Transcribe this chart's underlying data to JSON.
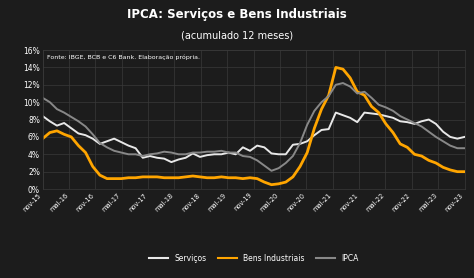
{
  "title": "IPCA: Serviços e Bens Industriais",
  "subtitle": "(acumulado 12 meses)",
  "source_text": "Fonte: IBGE, BCB e C6 Bank. Elaboração própria.",
  "bg_color": "#1c1c1c",
  "grid_color": "#3a3a3a",
  "text_color": "#ffffff",
  "ylim": [
    0,
    0.16
  ],
  "yticks": [
    0.0,
    0.02,
    0.04,
    0.06,
    0.08,
    0.1,
    0.12,
    0.14,
    0.16
  ],
  "ytick_labels": [
    "0%",
    "2%",
    "4%",
    "6%",
    "8%",
    "10%",
    "12%",
    "14%",
    "16%"
  ],
  "x_labels": [
    "nov-15",
    "mai-16",
    "nov-16",
    "mai-17",
    "nov-17",
    "mai-18",
    "nov-18",
    "mai-19",
    "nov-19",
    "mai-20",
    "nov-20",
    "mai-21",
    "nov-21",
    "mai-22",
    "nov-22",
    "mai-23",
    "nov-23"
  ],
  "servicos": [
    0.084,
    0.078,
    0.073,
    0.076,
    0.07,
    0.064,
    0.062,
    0.058,
    0.052,
    0.055,
    0.058,
    0.054,
    0.05,
    0.047,
    0.036,
    0.038,
    0.036,
    0.035,
    0.031,
    0.034,
    0.036,
    0.041,
    0.037,
    0.039,
    0.04,
    0.04,
    0.042,
    0.04,
    0.048,
    0.044,
    0.05,
    0.048,
    0.041,
    0.04,
    0.04,
    0.051,
    0.052,
    0.055,
    0.062,
    0.068,
    0.069,
    0.088,
    0.085,
    0.082,
    0.077,
    0.088,
    0.087,
    0.086,
    0.084,
    0.082,
    0.078,
    0.077,
    0.075,
    0.078,
    0.08,
    0.075,
    0.066,
    0.06,
    0.058,
    0.06
  ],
  "bens_industriais": [
    0.058,
    0.065,
    0.067,
    0.063,
    0.06,
    0.05,
    0.042,
    0.026,
    0.016,
    0.012,
    0.012,
    0.012,
    0.013,
    0.013,
    0.014,
    0.014,
    0.014,
    0.013,
    0.013,
    0.013,
    0.014,
    0.015,
    0.014,
    0.013,
    0.013,
    0.014,
    0.013,
    0.013,
    0.012,
    0.013,
    0.012,
    0.008,
    0.005,
    0.006,
    0.008,
    0.014,
    0.026,
    0.042,
    0.07,
    0.092,
    0.108,
    0.14,
    0.138,
    0.128,
    0.112,
    0.108,
    0.095,
    0.088,
    0.075,
    0.065,
    0.052,
    0.048,
    0.04,
    0.038,
    0.033,
    0.03,
    0.025,
    0.022,
    0.02,
    0.02
  ],
  "ipca": [
    0.105,
    0.1,
    0.092,
    0.088,
    0.083,
    0.078,
    0.072,
    0.063,
    0.053,
    0.048,
    0.044,
    0.042,
    0.04,
    0.04,
    0.038,
    0.04,
    0.041,
    0.043,
    0.042,
    0.04,
    0.04,
    0.042,
    0.042,
    0.043,
    0.043,
    0.044,
    0.042,
    0.042,
    0.038,
    0.037,
    0.033,
    0.027,
    0.021,
    0.024,
    0.03,
    0.038,
    0.053,
    0.074,
    0.09,
    0.1,
    0.107,
    0.12,
    0.122,
    0.118,
    0.11,
    0.112,
    0.105,
    0.097,
    0.094,
    0.09,
    0.084,
    0.08,
    0.076,
    0.072,
    0.066,
    0.06,
    0.055,
    0.05,
    0.047,
    0.047
  ],
  "servicos_color": "#e8e8e8",
  "bens_color": "#FFA500",
  "ipca_color": "#888888",
  "servicos_lw": 1.4,
  "bens_lw": 2.0,
  "ipca_lw": 1.4
}
